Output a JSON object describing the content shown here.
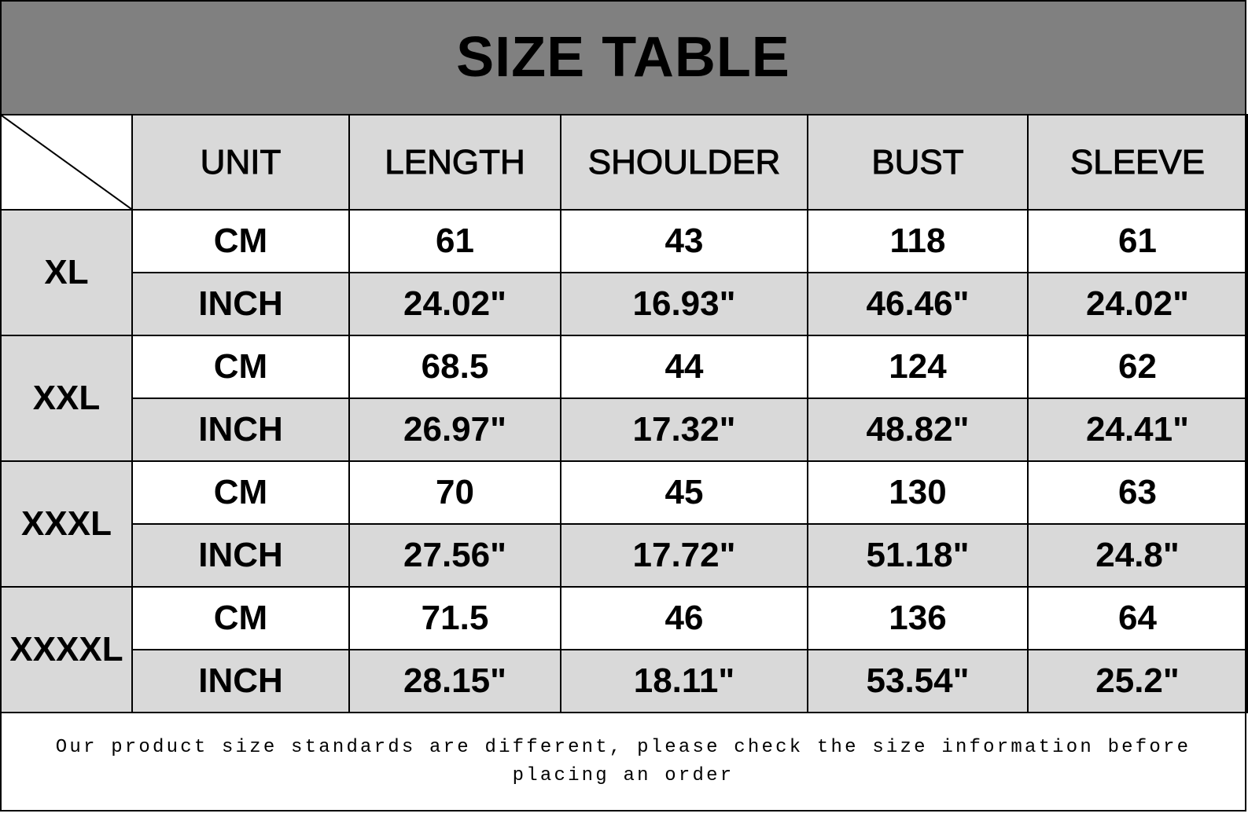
{
  "title": "SIZE TABLE",
  "headers": [
    "UNIT",
    "LENGTH",
    "SHOULDER",
    "BUST",
    "SLEEVE"
  ],
  "sizes": [
    {
      "size": "XL",
      "cm": {
        "unit": "CM",
        "values": [
          "61",
          "43",
          "118",
          "61"
        ]
      },
      "inch": {
        "unit": "INCH",
        "values": [
          "24.02\"",
          "16.93\"",
          "46.46\"",
          "24.02\""
        ]
      }
    },
    {
      "size": "XXL",
      "cm": {
        "unit": "CM",
        "values": [
          "68.5",
          "44",
          "124",
          "62"
        ]
      },
      "inch": {
        "unit": "INCH",
        "values": [
          "26.97\"",
          "17.32\"",
          "48.82\"",
          "24.41\""
        ]
      }
    },
    {
      "size": "XXXL",
      "cm": {
        "unit": "CM",
        "values": [
          "70",
          "45",
          "130",
          "63"
        ]
      },
      "inch": {
        "unit": "INCH",
        "values": [
          "27.56\"",
          "17.72\"",
          "51.18\"",
          "24.8\""
        ]
      }
    },
    {
      "size": "XXXXL",
      "cm": {
        "unit": "CM",
        "values": [
          "71.5",
          "46",
          "136",
          "64"
        ]
      },
      "inch": {
        "unit": "INCH",
        "values": [
          "28.15\"",
          "18.11\"",
          "53.54\"",
          "25.2\""
        ]
      }
    }
  ],
  "footer_note": "Our product size standards are different, please check the size information before placing an order",
  "colors": {
    "title_bg": "#808080",
    "shaded_cell": "#d9d9d9",
    "white_cell": "#ffffff",
    "border": "#000000"
  }
}
